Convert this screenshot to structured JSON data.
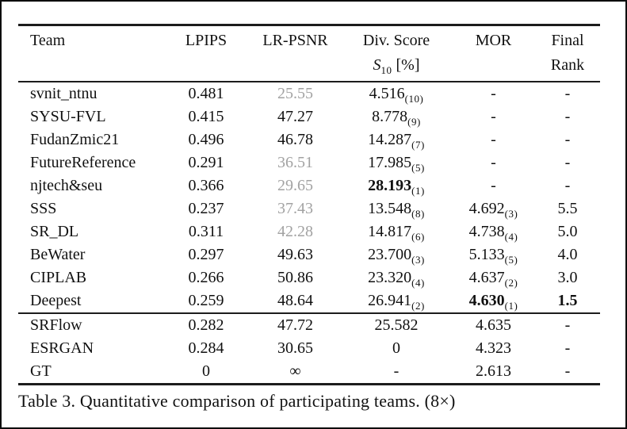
{
  "table": {
    "headers": {
      "team": "Team",
      "lpips": "LPIPS",
      "lr_psnr": "LR-PSNR",
      "div_score": "Div. Score",
      "s_symbol": "S",
      "s_sub": "10",
      "s_unit": " [%]",
      "mor": "MOR",
      "final_line1": "Final",
      "final_line2": "Rank"
    },
    "rows": [
      {
        "team": "svnit_ntnu",
        "lpips": "0.481",
        "lr_psnr": "25.55",
        "lr_psnr_variant": "gray",
        "div": "4.516",
        "div_sub": "(10)",
        "mor": "-",
        "mor_sub": "",
        "rank": "-"
      },
      {
        "team": "SYSU-FVL",
        "lpips": "0.415",
        "lr_psnr": "47.27",
        "div": "8.778",
        "div_sub": "(9)",
        "mor": "-",
        "mor_sub": "",
        "rank": "-"
      },
      {
        "team": "FudanZmic21",
        "lpips": "0.496",
        "lr_psnr": "46.78",
        "div": "14.287",
        "div_sub": "(7)",
        "mor": "-",
        "mor_sub": "",
        "rank": "-"
      },
      {
        "team": "FutureReference",
        "lpips": "0.291",
        "lr_psnr": "36.51",
        "lr_psnr_variant": "gray",
        "div": "17.985",
        "div_sub": "(5)",
        "mor": "-",
        "mor_sub": "",
        "rank": "-"
      },
      {
        "team": "njtech&seu",
        "lpips": "0.366",
        "lr_psnr": "29.65",
        "lr_psnr_variant": "gray",
        "div": "28.193",
        "div_sub": "(1)",
        "div_variant": "bold",
        "mor": "-",
        "mor_sub": "",
        "rank": "-"
      },
      {
        "team": "SSS",
        "lpips": "0.237",
        "lr_psnr": "37.43",
        "lr_psnr_variant": "gray",
        "div": "13.548",
        "div_sub": "(8)",
        "mor": "4.692",
        "mor_sub": "(3)",
        "rank": "5.5"
      },
      {
        "team": "SR_DL",
        "lpips": "0.311",
        "lr_psnr": "42.28",
        "lr_psnr_variant": "gray",
        "div": "14.817",
        "div_sub": "(6)",
        "mor": "4.738",
        "mor_sub": "(4)",
        "rank": "5.0"
      },
      {
        "team": "BeWater",
        "lpips": "0.297",
        "lr_psnr": "49.63",
        "div": "23.700",
        "div_sub": "(3)",
        "mor": "5.133",
        "mor_sub": "(5)",
        "rank": "4.0"
      },
      {
        "team": "CIPLAB",
        "lpips": "0.266",
        "lr_psnr": "50.86",
        "div": "23.320",
        "div_sub": "(4)",
        "mor": "4.637",
        "mor_sub": "(2)",
        "rank": "3.0"
      },
      {
        "team": "Deepest",
        "lpips": "0.259",
        "lr_psnr": "48.64",
        "div": "26.941",
        "div_sub": "(2)",
        "mor": "4.630",
        "mor_sub": "(1)",
        "mor_variant": "bold",
        "rank": "1.5",
        "rank_variant": "bold"
      },
      {
        "team": "SRFlow",
        "lpips": "0.282",
        "lr_psnr": "47.72",
        "div": "25.582",
        "div_sub": "",
        "mor": "4.635",
        "mor_sub": "",
        "rank": "-"
      },
      {
        "team": "ESRGAN",
        "lpips": "0.284",
        "lr_psnr": "30.65",
        "div": "0",
        "div_sub": "",
        "mor": "4.323",
        "mor_sub": "",
        "rank": "-"
      },
      {
        "team": "GT",
        "lpips": "0",
        "lr_psnr": "∞",
        "div": "-",
        "div_sub": "",
        "mor": "2.613",
        "mor_sub": "",
        "rank": "-"
      }
    ]
  },
  "caption": "Table 3. Quantitative comparison of participating teams. (8×)"
}
